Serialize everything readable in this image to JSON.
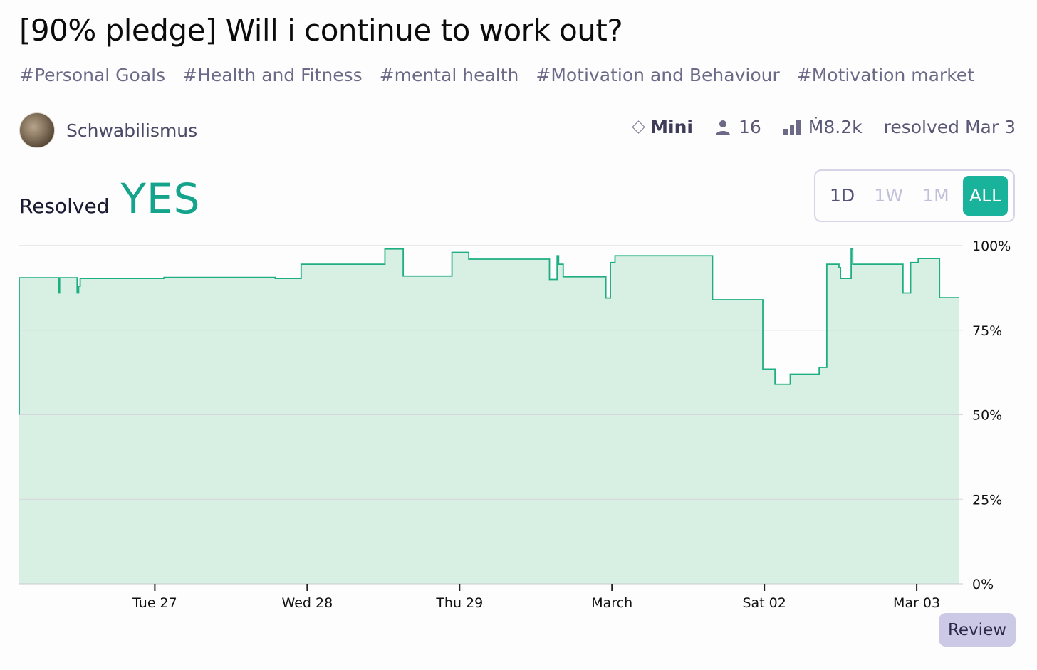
{
  "title": "[90% pledge] Will i continue to work out?",
  "tags": [
    "#Personal Goals",
    "#Health and Fitness",
    "#mental health",
    "#Motivation and Behaviour",
    "#Motivation market"
  ],
  "author": {
    "name": "Schwabilismus"
  },
  "meta": {
    "tier": "Mini",
    "traders": "16",
    "volume": "Ṁ8.2k",
    "resolved": "resolved Mar 3"
  },
  "resolution": {
    "label": "Resolved",
    "value": "YES"
  },
  "range_buttons": [
    "1D",
    "1W",
    "1M",
    "ALL"
  ],
  "range_active": "ALL",
  "review_label": "Review",
  "colors": {
    "accent": "#14a38b",
    "line": "#1fae82",
    "fill": "#d8efe4"
  },
  "chart_data": {
    "type": "area",
    "title": "",
    "xlabel": "",
    "ylabel": "",
    "ylim": [
      0,
      100
    ],
    "y_ticks": [
      "0%",
      "25%",
      "50%",
      "75%",
      "100%"
    ],
    "x_tick_labels": [
      "Tue 27",
      "Wed 28",
      "Thu 29",
      "March",
      "Sat 02",
      "Mar 03"
    ],
    "x_range_days": [
      0,
      6.17
    ],
    "x_tick_positions_days": [
      0.89,
      1.89,
      2.89,
      3.89,
      4.89,
      5.89
    ],
    "grid": true,
    "series": [
      {
        "step": true,
        "points": [
          [
            0.0,
            50
          ],
          [
            0.0,
            90.5
          ],
          [
            0.26,
            90.5
          ],
          [
            0.26,
            86
          ],
          [
            0.265,
            86
          ],
          [
            0.265,
            90.5
          ],
          [
            0.38,
            90.5
          ],
          [
            0.38,
            86
          ],
          [
            0.39,
            86
          ],
          [
            0.39,
            88
          ],
          [
            0.4,
            88
          ],
          [
            0.4,
            90.3
          ],
          [
            0.95,
            90.3
          ],
          [
            0.95,
            90.6
          ],
          [
            1.68,
            90.6
          ],
          [
            1.68,
            90.3
          ],
          [
            1.85,
            90.3
          ],
          [
            1.85,
            94.5
          ],
          [
            2.4,
            94.5
          ],
          [
            2.4,
            99
          ],
          [
            2.52,
            99
          ],
          [
            2.52,
            91
          ],
          [
            2.84,
            91
          ],
          [
            2.84,
            98
          ],
          [
            2.95,
            98
          ],
          [
            2.95,
            96
          ],
          [
            3.48,
            96
          ],
          [
            3.48,
            90
          ],
          [
            3.53,
            90
          ],
          [
            3.53,
            97
          ],
          [
            3.54,
            97
          ],
          [
            3.54,
            94.5
          ],
          [
            3.57,
            94.5
          ],
          [
            3.57,
            90.8
          ],
          [
            3.85,
            90.8
          ],
          [
            3.85,
            84.5
          ],
          [
            3.88,
            84.5
          ],
          [
            3.88,
            95
          ],
          [
            3.91,
            95
          ],
          [
            3.91,
            97
          ],
          [
            4.55,
            97
          ],
          [
            4.55,
            84
          ],
          [
            4.88,
            84
          ],
          [
            4.88,
            63.5
          ],
          [
            4.96,
            63.5
          ],
          [
            4.96,
            59
          ],
          [
            5.06,
            59
          ],
          [
            5.06,
            62
          ],
          [
            5.25,
            62
          ],
          [
            5.25,
            64
          ],
          [
            5.3,
            64
          ],
          [
            5.3,
            94.5
          ],
          [
            5.38,
            94.5
          ],
          [
            5.38,
            93.5
          ],
          [
            5.39,
            93.5
          ],
          [
            5.39,
            90.3
          ],
          [
            5.46,
            90.3
          ],
          [
            5.46,
            99
          ],
          [
            5.47,
            99
          ],
          [
            5.47,
            94.5
          ],
          [
            5.8,
            94.5
          ],
          [
            5.8,
            86
          ],
          [
            5.85,
            86
          ],
          [
            5.85,
            95
          ],
          [
            5.9,
            95
          ],
          [
            5.9,
            96.2
          ],
          [
            6.04,
            96.2
          ],
          [
            6.04,
            84.6
          ],
          [
            6.17,
            84.6
          ]
        ]
      }
    ]
  }
}
